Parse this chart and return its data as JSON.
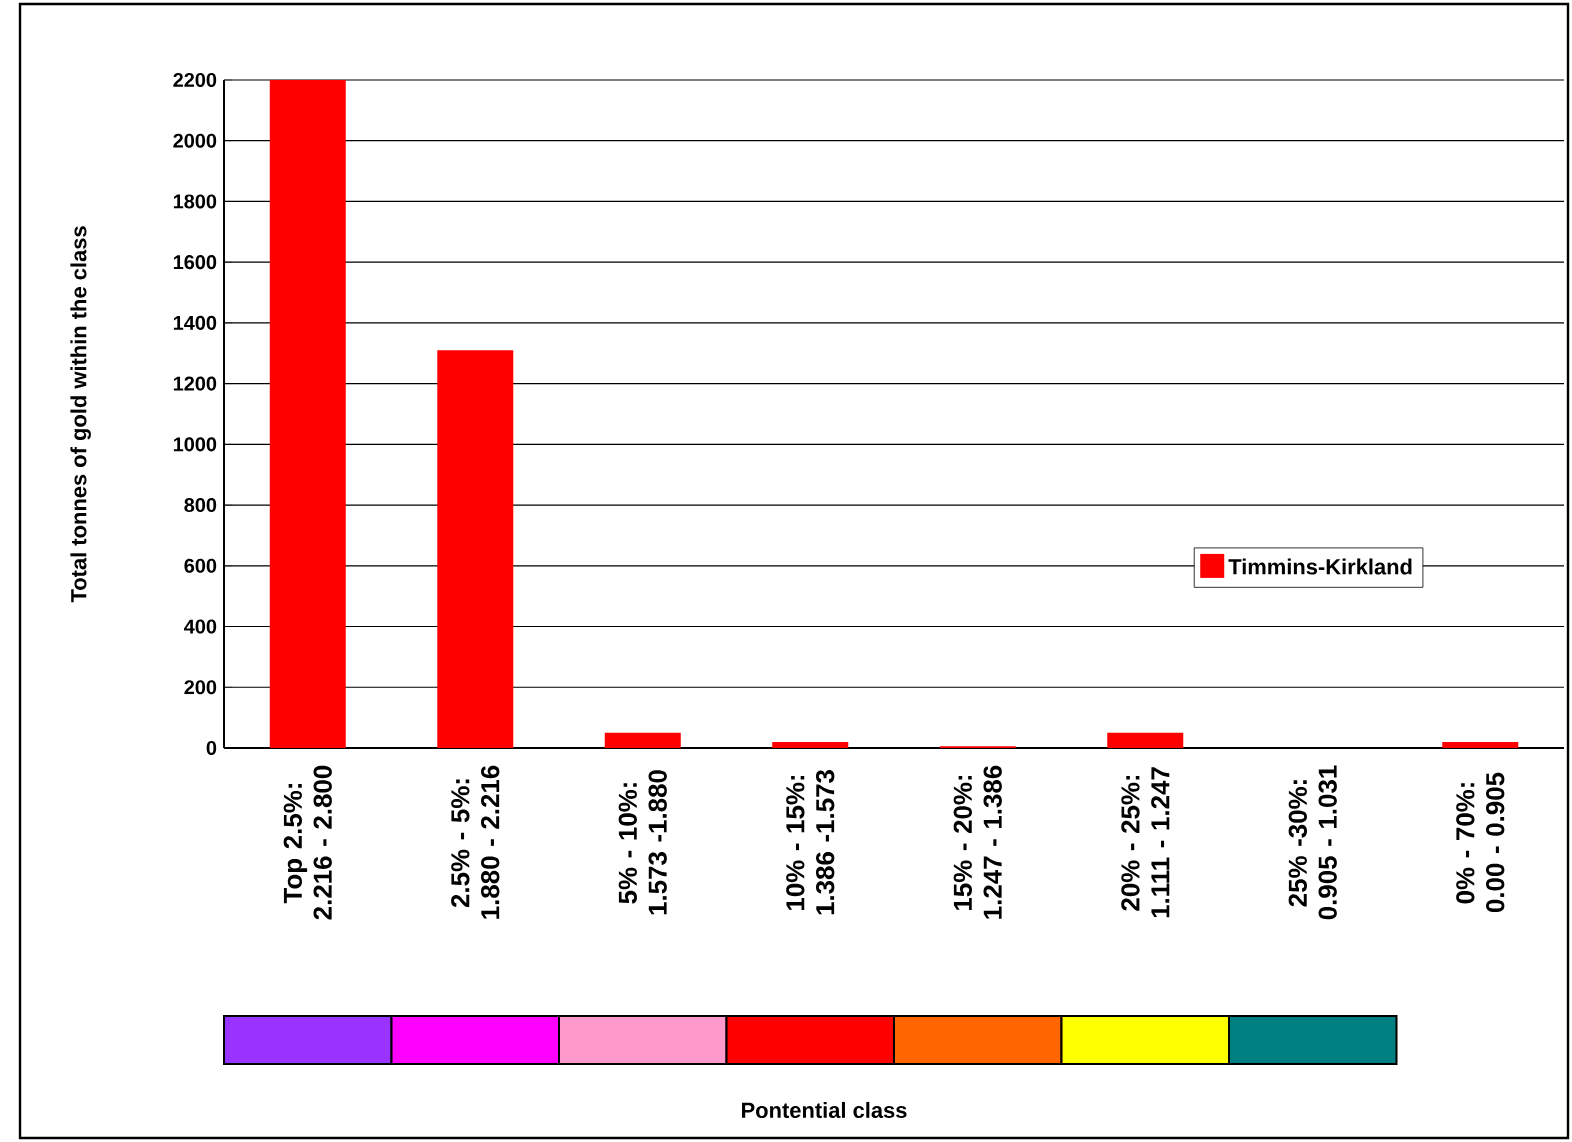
{
  "chart_data": {
    "type": "bar",
    "annotations": [
      "Pontential class"
    ],
    "ylabel": "Total tonnes of gold within the class",
    "categories": [
      "Top 2.5%: 2.216 - 2.800",
      "2.5% - 5%: 1.880 - 2.216",
      "5% - 10%: 1.573 -1.880",
      "10% - 15%: 1.386 -1.573",
      "15% - 20%: 1.247 - 1.386",
      "20% - 25%: 1.111 - 1.247",
      "25% -30%: 0.905 - 1.031",
      "0% - 70%: 0.00 - 0.905"
    ],
    "series": [
      {
        "name": "Timmins-Kirkland",
        "color": "#ff0000",
        "values": [
          2200,
          1310,
          50,
          20,
          6,
          50,
          0,
          20
        ]
      }
    ],
    "ylim": [
      0,
      2200
    ],
    "yticks": [
      0,
      200,
      400,
      600,
      800,
      1000,
      1200,
      1400,
      1600,
      1800,
      2000,
      2200
    ],
    "grid": "y",
    "legend": "right"
  }
}
